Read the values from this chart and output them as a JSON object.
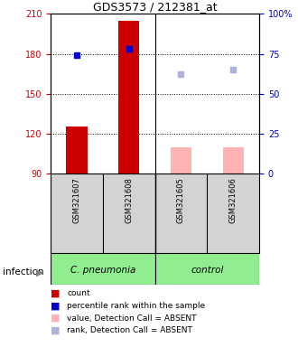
{
  "title": "GDS3573 / 212381_at",
  "samples": [
    "GSM321607",
    "GSM321608",
    "GSM321605",
    "GSM321606"
  ],
  "count_values": [
    125,
    205,
    110,
    110
  ],
  "count_absent": [
    false,
    false,
    true,
    true
  ],
  "percentile_values": [
    179,
    184,
    null,
    null
  ],
  "percentile_absent": [
    false,
    true,
    null,
    null
  ],
  "rank_values": [
    null,
    null,
    165,
    168
  ],
  "ymin": 90,
  "ymax": 210,
  "yticks_left": [
    90,
    120,
    150,
    180,
    210
  ],
  "color_present": "#cc0000",
  "color_absent_bar": "#ffb3b3",
  "color_blue": "#0000cc",
  "color_rank_absent": "#b0b0e0",
  "color_left_axis": "#cc0000",
  "color_right_axis": "#0000cc",
  "sample_box_color": "#d3d3d3",
  "group1_color": "#90ee90",
  "group2_color": "#90ee90",
  "group1_label": "C. pneumonia",
  "group2_label": "control",
  "title_fontsize": 9,
  "tick_fontsize": 7,
  "sample_fontsize": 6,
  "legend_fontsize": 6.5,
  "group_fontsize": 7.5,
  "infection_label": "infection",
  "legend_items": [
    {
      "label": "count",
      "color": "#cc0000"
    },
    {
      "label": "percentile rank within the sample",
      "color": "#0000cc"
    },
    {
      "label": "value, Detection Call = ABSENT",
      "color": "#ffb3b3"
    },
    {
      "label": "rank, Detection Call = ABSENT",
      "color": "#b0b0e0"
    }
  ]
}
